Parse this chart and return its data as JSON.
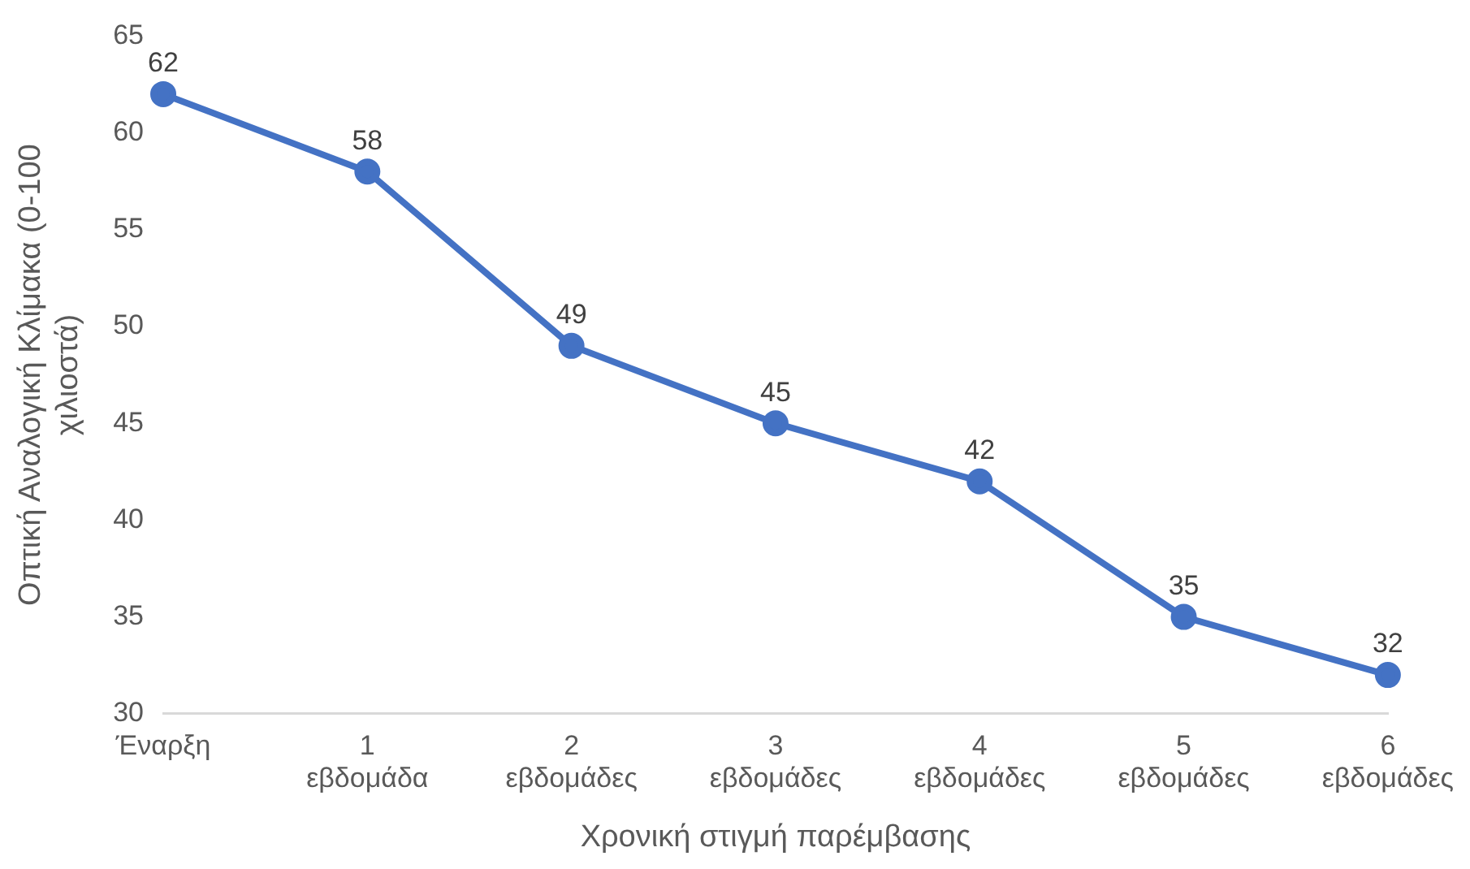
{
  "chart_data": {
    "type": "line",
    "xlabel": "Χρονική στιγμή παρέμβασης",
    "ylabel": "Οπτική Αναλογική Κλίμακα (0-100 χιλιοστά)",
    "categories": [
      "Έναρξη",
      "1 εβδομάδα",
      "2 εβδομάδες",
      "3 εβδομάδες",
      "4 εβδομάδες",
      "5 εβδομάδες",
      "6 εβδομάδες"
    ],
    "series": [
      {
        "color": "#4472c4",
        "values": [
          62,
          58,
          49,
          45,
          42,
          35,
          32
        ]
      }
    ],
    "ylim": [
      30,
      65
    ],
    "yticks": [
      30,
      35,
      40,
      45,
      50,
      55,
      60,
      65
    ],
    "grid": false,
    "legend": false,
    "marker": "circle",
    "line_style": "solid",
    "data_labels": true
  }
}
